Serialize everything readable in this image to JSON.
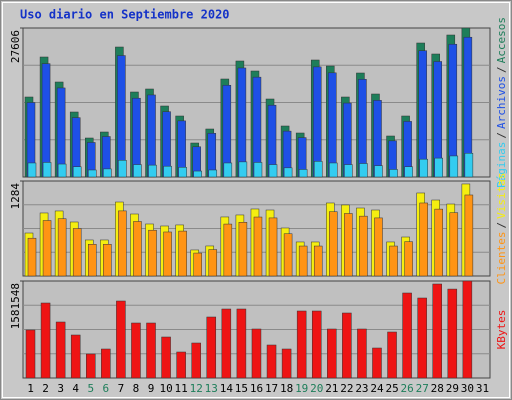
{
  "chart_data": [
    {
      "type": "bar",
      "title": "Uso diario en Septiembre 2020",
      "legend_separator": "/",
      "ylim": [
        0,
        27606
      ],
      "yticks": [
        27606
      ],
      "series": [
        {
          "name": "Accesos",
          "color": "#1e7e5a",
          "values": [
            14822,
            22233,
            17601,
            12043,
            7226,
            8337,
            24085,
            15748,
            16304,
            13154,
            11302,
            6299,
            8893,
            18157,
            21492,
            19639,
            14451,
            9449,
            8152,
            21677,
            20565,
            14822,
            19268,
            15378,
            7596,
            11302,
            24827,
            22789,
            26309,
            27606,
            null
          ]
        },
        {
          "name": "Archivos",
          "color": "#1e50e6",
          "values": [
            13800,
            21000,
            16500,
            11000,
            6400,
            7500,
            22500,
            14600,
            15200,
            12100,
            10400,
            5600,
            8100,
            17000,
            20200,
            18500,
            13300,
            8500,
            7300,
            20400,
            19300,
            13700,
            18100,
            14200,
            6700,
            10300,
            23400,
            21400,
            24600,
            25900,
            null
          ]
        },
        {
          "name": "Páginas",
          "color": "#33ccf0",
          "values": [
            2600,
            2700,
            2400,
            1900,
            1300,
            1500,
            3100,
            2300,
            2200,
            2000,
            1800,
            1100,
            1300,
            2600,
            2800,
            2700,
            2300,
            1700,
            1400,
            2900,
            2600,
            2300,
            2500,
            2100,
            1400,
            1900,
            3300,
            3500,
            3900,
            4400,
            null
          ]
        }
      ]
    },
    {
      "type": "bar",
      "legend_separator": "/",
      "ylim": [
        0,
        1284
      ],
      "yticks": [
        1284
      ],
      "series": [
        {
          "name": "Visitas",
          "color": "#f5ee10",
          "values": [
            581,
            852,
            879,
            730,
            487,
            487,
            1000,
            838,
            703,
            676,
            690,
            352,
            406,
            798,
            825,
            906,
            892,
            649,
            460,
            460,
            987,
            960,
            919,
            892,
            460,
            527,
            1122,
            1027,
            973,
            1244,
            null
          ]
        },
        {
          "name": "Clientes",
          "color": "#ff9414",
          "values": [
            511,
            750,
            774,
            642,
            429,
            429,
            880,
            737,
            619,
            595,
            607,
            310,
            357,
            702,
            726,
            797,
            785,
            571,
            405,
            405,
            869,
            845,
            809,
            785,
            405,
            464,
            987,
            904,
            856,
            1095,
            null
          ]
        }
      ]
    },
    {
      "type": "bar",
      "ylim": [
        0,
        1581548
      ],
      "yticks": [
        1581548
      ],
      "categories": [
        "1",
        "2",
        "3",
        "4",
        "5",
        "6",
        "7",
        "8",
        "9",
        "10",
        "11",
        "12",
        "13",
        "14",
        "15",
        "16",
        "17",
        "18",
        "19",
        "20",
        "21",
        "22",
        "23",
        "24",
        "25",
        "26",
        "27",
        "28",
        "29",
        "30",
        "31"
      ],
      "category_colors": [
        "#000",
        "#000",
        "#000",
        "#000",
        "#1e7e5a",
        "#1e7e5a",
        "#000",
        "#000",
        "#000",
        "#000",
        "#000",
        "#1e7e5a",
        "#1e7e5a",
        "#000",
        "#000",
        "#000",
        "#000",
        "#000",
        "#1e7e5a",
        "#1e7e5a",
        "#000",
        "#000",
        "#000",
        "#000",
        "#000",
        "#1e7e5a",
        "#1e7e5a",
        "#000",
        "#000",
        "#000",
        "#000"
      ],
      "series": [
        {
          "name": "KBytes",
          "color": "#ee1414",
          "values": [
            782592,
            1222800,
            913024,
            701072,
            391296,
            472816,
            1255408,
            896720,
            896720,
            668464,
            423904,
            570640,
            994544,
            1124976,
            1124976,
            798896,
            538032,
            472816,
            1092368,
            1092368,
            798896,
            1059760,
            798896,
            489120,
            749984,
            1385840,
            1304320,
            1532576,
            1450000,
            1581548,
            null
          ]
        }
      ]
    }
  ]
}
